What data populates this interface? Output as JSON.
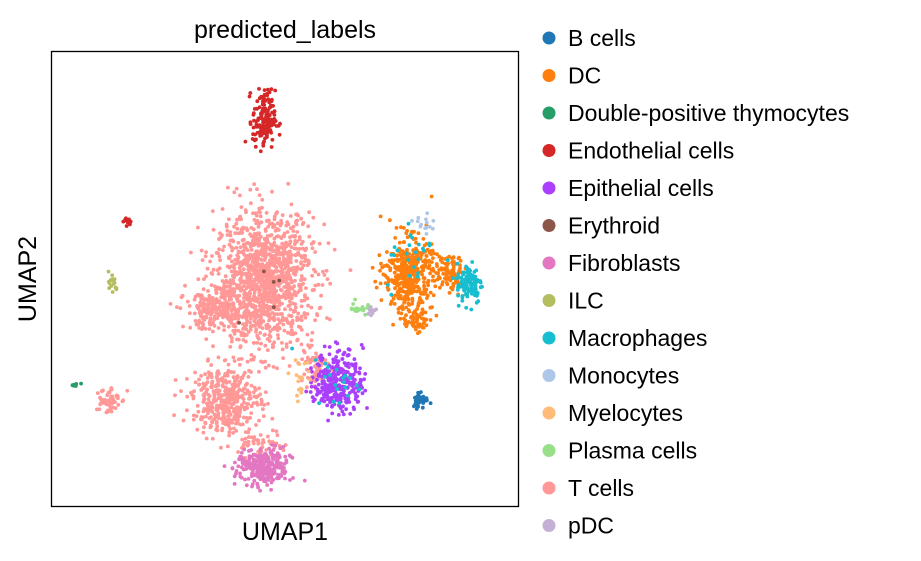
{
  "chart_data": {
    "type": "scatter",
    "title": "predicted_labels",
    "xlabel": "UMAP1",
    "ylabel": "UMAP2",
    "xlim": [
      0,
      100
    ],
    "ylim": [
      0,
      100
    ],
    "grid": false,
    "legend_position": "right",
    "series": [
      {
        "name": "B cells",
        "color": "#1f77b4",
        "clusters": [
          {
            "cx": 79.0,
            "cy": 23.5,
            "sx": 1.0,
            "sy": 1.2,
            "n": 40
          }
        ]
      },
      {
        "name": "DC",
        "color": "#ff7f0e",
        "clusters": [
          {
            "cx": 76.5,
            "cy": 51.0,
            "sx": 3.2,
            "sy": 5.0,
            "n": 420
          },
          {
            "cx": 85.0,
            "cy": 51.0,
            "sx": 2.4,
            "sy": 2.6,
            "n": 90
          },
          {
            "cx": 78.0,
            "cy": 41.0,
            "sx": 1.6,
            "sy": 1.6,
            "n": 50
          }
        ]
      },
      {
        "name": "Double-positive thymocytes",
        "color": "#279e68",
        "clusters": [
          {
            "cx": 5.0,
            "cy": 27.0,
            "sx": 0.8,
            "sy": 0.4,
            "n": 6
          }
        ]
      },
      {
        "name": "Endothelial cells",
        "color": "#d62728",
        "clusters": [
          {
            "cx": 45.5,
            "cy": 85.0,
            "sx": 1.5,
            "sy": 4.0,
            "n": 150
          },
          {
            "cx": 16.3,
            "cy": 62.8,
            "sx": 0.8,
            "sy": 0.6,
            "n": 12
          }
        ]
      },
      {
        "name": "Epithelial cells",
        "color": "#aa40fc",
        "clusters": [
          {
            "cx": 61.5,
            "cy": 27.5,
            "sx": 3.2,
            "sy": 4.2,
            "n": 300
          }
        ]
      },
      {
        "name": "Erythroid",
        "color": "#8c564b",
        "clusters": [
          {
            "cx": 45.0,
            "cy": 48.0,
            "sx": 4.0,
            "sy": 4.0,
            "n": 5
          }
        ]
      },
      {
        "name": "Fibroblasts",
        "color": "#e377c2",
        "clusters": [
          {
            "cx": 45.5,
            "cy": 8.5,
            "sx": 3.6,
            "sy": 2.6,
            "n": 260
          }
        ]
      },
      {
        "name": "ILC",
        "color": "#b5bd61",
        "clusters": [
          {
            "cx": 13.0,
            "cy": 49.0,
            "sx": 0.7,
            "sy": 1.5,
            "n": 16
          }
        ]
      },
      {
        "name": "Macrophages",
        "color": "#17becf",
        "clusters": [
          {
            "cx": 89.5,
            "cy": 49.0,
            "sx": 1.7,
            "sy": 2.8,
            "n": 110
          },
          {
            "cx": 78.0,
            "cy": 55.0,
            "sx": 4.0,
            "sy": 5.0,
            "n": 25
          },
          {
            "cx": 61.0,
            "cy": 28.0,
            "sx": 3.5,
            "sy": 4.0,
            "n": 20
          }
        ]
      },
      {
        "name": "Monocytes",
        "color": "#aec7e8",
        "clusters": [
          {
            "cx": 79.5,
            "cy": 62.0,
            "sx": 2.0,
            "sy": 2.0,
            "n": 14
          }
        ]
      },
      {
        "name": "Myelocytes",
        "color": "#ffbb78",
        "clusters": [
          {
            "cx": 53.5,
            "cy": 28.5,
            "sx": 1.5,
            "sy": 2.5,
            "n": 18
          }
        ]
      },
      {
        "name": "Plasma cells",
        "color": "#98df8a",
        "clusters": [
          {
            "cx": 65.5,
            "cy": 43.5,
            "sx": 1.2,
            "sy": 1.0,
            "n": 20
          }
        ]
      },
      {
        "name": "T cells",
        "color": "#ff9896",
        "clusters": [
          {
            "cx": 45.5,
            "cy": 49.5,
            "sx": 6.5,
            "sy": 9.0,
            "n": 1300
          },
          {
            "cx": 35.0,
            "cy": 43.0,
            "sx": 4.0,
            "sy": 2.5,
            "n": 220
          },
          {
            "cx": 37.5,
            "cy": 23.5,
            "sx": 4.5,
            "sy": 4.5,
            "n": 420
          },
          {
            "cx": 12.0,
            "cy": 23.5,
            "sx": 1.6,
            "sy": 2.0,
            "n": 60
          },
          {
            "cx": 56.0,
            "cy": 30.0,
            "sx": 2.0,
            "sy": 3.0,
            "n": 60
          },
          {
            "cx": 45.0,
            "cy": 13.0,
            "sx": 3.0,
            "sy": 2.5,
            "n": 60
          }
        ]
      },
      {
        "name": "pDC",
        "color": "#c5b0d5",
        "clusters": [
          {
            "cx": 68.5,
            "cy": 43.0,
            "sx": 1.0,
            "sy": 0.8,
            "n": 12
          }
        ]
      }
    ]
  }
}
